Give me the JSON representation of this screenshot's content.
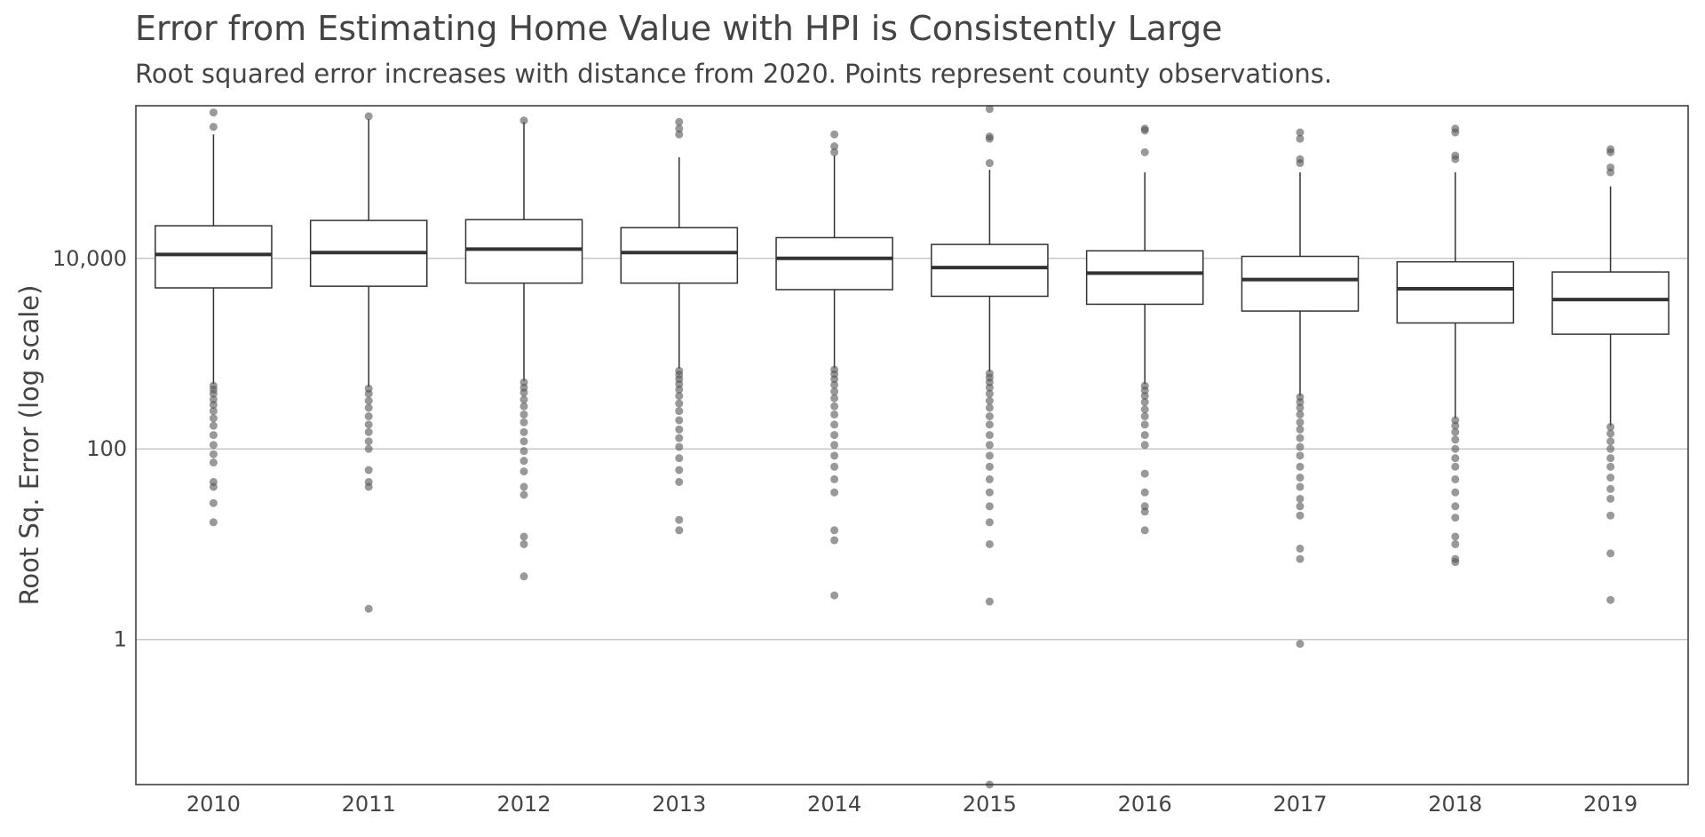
{
  "chart_data": {
    "type": "boxplot",
    "title": "Error from Estimating Home Value with HPI is Consistently Large",
    "subtitle": "Root squared error increases with distance from 2020. Points represent county observations.",
    "xlabel": "",
    "ylabel": "Root Sq. Error (log scale)",
    "y_scale": "log10",
    "ylim": [
      0.03,
      400000
    ],
    "y_ticks": [
      {
        "value": 1,
        "label": "1"
      },
      {
        "value": 100,
        "label": "100"
      },
      {
        "value": 10000,
        "label": "10,000"
      }
    ],
    "grid": "horizontal major lines",
    "legend": "none",
    "colors": {
      "box_fill": "#ffffff",
      "box_stroke": "#333333",
      "median": "#333333",
      "points": "#555555",
      "grid": "#c8c8c8"
    },
    "categories": [
      "2010",
      "2011",
      "2012",
      "2013",
      "2014",
      "2015",
      "2016",
      "2017",
      "2018",
      "2019"
    ],
    "boxes": [
      {
        "category": "2010",
        "q1": 4900,
        "median": 11000,
        "q3": 22000,
        "whisker_low": 480,
        "whisker_high": 200000,
        "outliers_low": [
          460,
          420,
          380,
          330,
          290,
          250,
          210,
          175,
          140,
          110,
          88,
          72,
          45,
          40,
          27,
          17
        ],
        "outliers_high": [
          240000,
          340000
        ]
      },
      {
        "category": "2011",
        "q1": 5100,
        "median": 11500,
        "q3": 25000,
        "whisker_low": 450,
        "whisker_high": 290000,
        "outliers_low": [
          430,
          380,
          320,
          270,
          220,
          180,
          150,
          120,
          100,
          60,
          45,
          40,
          2.1
        ],
        "outliers_high": [
          310000
        ]
      },
      {
        "category": "2012",
        "q1": 5500,
        "median": 12500,
        "q3": 25500,
        "whisker_low": 520,
        "whisker_high": 270000,
        "outliers_low": [
          500,
          440,
          390,
          330,
          280,
          230,
          190,
          150,
          120,
          95,
          75,
          58,
          40,
          33,
          12,
          10,
          4.6
        ],
        "outliers_high": [
          280000
        ]
      },
      {
        "category": "2013",
        "q1": 5500,
        "median": 11500,
        "q3": 21000,
        "whisker_low": 700,
        "whisker_high": 115000,
        "outliers_low": [
          660,
          600,
          540,
          480,
          420,
          360,
          300,
          250,
          200,
          160,
          130,
          105,
          80,
          60,
          45,
          18,
          14
        ],
        "outliers_high": [
          200000,
          230000,
          270000
        ]
      },
      {
        "category": "2014",
        "q1": 4700,
        "median": 10000,
        "q3": 16500,
        "whisker_low": 700,
        "whisker_high": 120000,
        "outliers_low": [
          680,
          610,
          540,
          470,
          400,
          340,
          280,
          230,
          180,
          140,
          110,
          85,
          65,
          48,
          35,
          14,
          11,
          2.9
        ],
        "outliers_high": [
          130000,
          150000,
          200000
        ]
      },
      {
        "category": "2015",
        "q1": 4000,
        "median": 8000,
        "q3": 14000,
        "whisker_low": 650,
        "whisker_high": 85000,
        "outliers_low": [
          620,
          560,
          500,
          440,
          380,
          320,
          270,
          220,
          180,
          140,
          110,
          85,
          65,
          48,
          35,
          25,
          17,
          10,
          2.5,
          0.03
        ],
        "outliers_high": [
          100000,
          180000,
          190000,
          370000
        ]
      },
      {
        "category": "2016",
        "q1": 3300,
        "median": 7000,
        "q3": 12000,
        "whisker_low": 480,
        "whisker_high": 80000,
        "outliers_low": [
          460,
          410,
          360,
          310,
          260,
          220,
          180,
          140,
          110,
          55,
          35,
          25,
          22,
          14
        ],
        "outliers_high": [
          130000,
          220000,
          230000
        ]
      },
      {
        "category": "2017",
        "q1": 2800,
        "median": 6000,
        "q3": 10500,
        "whisker_low": 360,
        "whisker_high": 80000,
        "outliers_low": [
          350,
          310,
          270,
          230,
          190,
          160,
          130,
          105,
          85,
          65,
          50,
          40,
          30,
          25,
          20,
          9,
          7,
          0.9
        ],
        "outliers_high": [
          100000,
          110000,
          180000,
          210000
        ]
      },
      {
        "category": "2018",
        "q1": 2100,
        "median": 4800,
        "q3": 9200,
        "whisker_low": 210,
        "whisker_high": 80000,
        "outliers_low": [
          200,
          175,
          150,
          125,
          100,
          80,
          65,
          48,
          35,
          25,
          19,
          12,
          10,
          7,
          6.5
        ],
        "outliers_high": [
          110000,
          120000,
          210000,
          230000
        ]
      },
      {
        "category": "2019",
        "q1": 1600,
        "median": 3700,
        "q3": 7200,
        "whisker_low": 175,
        "whisker_high": 57000,
        "outliers_low": [
          170,
          145,
          120,
          100,
          80,
          65,
          50,
          38,
          30,
          20,
          8,
          2.6
        ],
        "outliers_high": [
          80000,
          90000,
          130000,
          140000
        ]
      }
    ]
  }
}
